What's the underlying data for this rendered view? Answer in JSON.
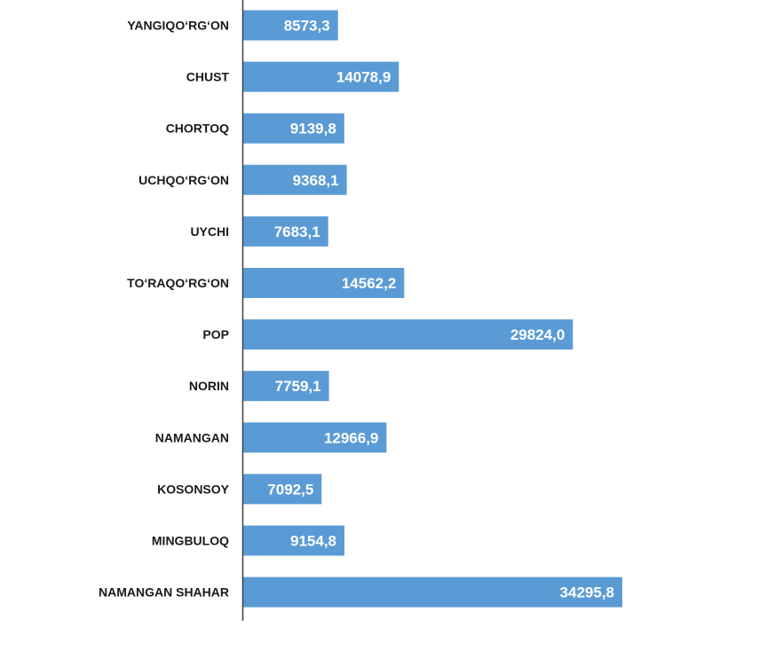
{
  "chart_data": {
    "type": "bar",
    "orientation": "horizontal",
    "title": "",
    "xlabel": "",
    "ylabel": "",
    "categories": [
      "YANGIQO‘RG‘ON",
      "CHUST",
      "CHORTOQ",
      "UCHQO‘RG‘ON",
      "UYCHI",
      "TO‘RAQO‘RG‘ON",
      "POP",
      "NORIN",
      "NAMANGAN",
      "KOSONSOY",
      "MINGBULOQ",
      "NAMANGAN SHAHAR"
    ],
    "values": [
      8573.3,
      14078.9,
      9139.8,
      9368.1,
      7683.1,
      14562.2,
      29824.0,
      7759.1,
      12966.9,
      7092.5,
      9154.8,
      34295.8
    ],
    "value_labels": [
      "8573,3",
      "14078,9",
      "9139,8",
      "9368,1",
      "7683,1",
      "14562,2",
      "29824,0",
      "7759,1",
      "12966,9",
      "7092,5",
      "9154,8",
      "34295,8"
    ],
    "xlim": [
      0,
      34295.8
    ],
    "grid": false,
    "legend": "none",
    "colors": {
      "bar": "#5b9bd5",
      "axis": "#404040",
      "category_text": "#1a1a1a",
      "value_text": "#ffffff"
    }
  }
}
